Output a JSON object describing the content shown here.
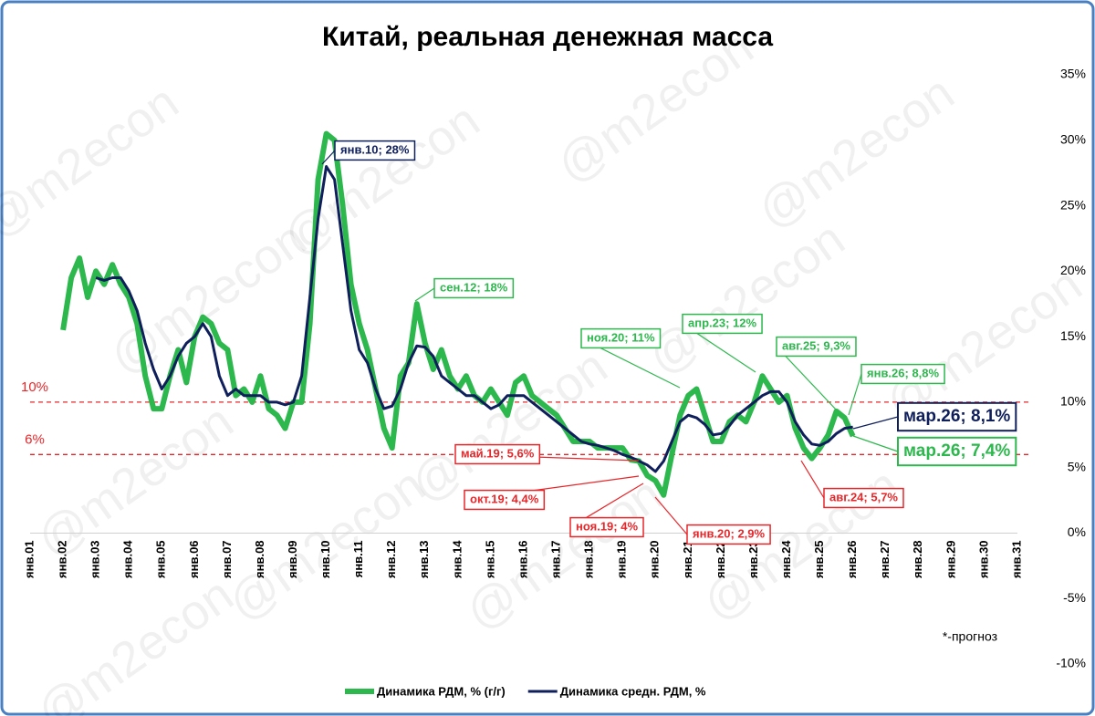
{
  "chart_data": {
    "type": "line",
    "title": "Китай, реальная денежная масса",
    "watermark": "@m2econ",
    "note": "*-прогноз",
    "categories": [
      "янв.01",
      null,
      null,
      null,
      "янв.02",
      null,
      null,
      null,
      "янв.03",
      null,
      null,
      null,
      "янв.04",
      null,
      null,
      null,
      "янв.05",
      null,
      null,
      null,
      "янв.06",
      null,
      null,
      null,
      "янв.07",
      null,
      null,
      null,
      "янв.08",
      null,
      null,
      null,
      "янв.09",
      null,
      null,
      null,
      "янв.10",
      null,
      null,
      null,
      "янв.11",
      null,
      null,
      null,
      "янв.12",
      null,
      null,
      null,
      "янв.13",
      null,
      null,
      null,
      "янв.14",
      null,
      null,
      null,
      "янв.15",
      null,
      null,
      null,
      "янв.16",
      null,
      null,
      null,
      "янв.17",
      null,
      null,
      null,
      "янв.18",
      null,
      null,
      null,
      "янв.19",
      null,
      null,
      null,
      "янв.20",
      null,
      null,
      null,
      "янв.21",
      null,
      null,
      null,
      "янв.22",
      null,
      null,
      null,
      "янв.23",
      null,
      null,
      null,
      "янв.24",
      null,
      null,
      null,
      "янв.25",
      null,
      null,
      null,
      "янв.26",
      null,
      null,
      null,
      "янв.27",
      null,
      null,
      null,
      "янв.28",
      null,
      null,
      null,
      "янв.29",
      null,
      null,
      null,
      "янв.30",
      null,
      null,
      null,
      "янв.31"
    ],
    "series": [
      {
        "name": "Динамика РДМ, % (г/г)",
        "color": "#2db84d",
        "width": 6,
        "values": [
          null,
          null,
          null,
          null,
          15.5,
          19.5,
          21,
          18,
          20,
          19,
          20.5,
          19,
          18,
          16,
          12,
          9.5,
          9.5,
          12,
          14,
          11.5,
          15,
          16.5,
          16,
          14.5,
          14,
          10.5,
          11,
          10,
          12,
          9.5,
          9,
          8,
          10,
          10,
          16,
          27,
          30.5,
          30,
          25,
          19,
          16,
          14,
          11,
          8,
          6.5,
          12,
          13,
          17.5,
          14.5,
          12.5,
          14,
          12,
          11,
          12,
          10.5,
          10,
          11,
          10,
          9,
          11.5,
          12,
          10.5,
          10,
          9.5,
          9,
          8,
          7,
          7,
          7,
          6.5,
          6.5,
          6.5,
          6.5,
          5.6,
          5.5,
          4.4,
          4,
          2.9,
          6,
          9,
          10.5,
          11,
          9,
          7,
          7,
          8.5,
          9,
          8.5,
          10,
          12,
          11,
          10,
          10.5,
          8,
          6.5,
          5.7,
          6.5,
          7.5,
          9.3,
          8.8,
          7.4,
          null,
          null,
          null,
          null,
          null,
          null,
          null,
          null,
          null,
          null,
          null,
          null,
          null,
          null,
          null,
          null,
          null,
          null,
          null,
          null
        ]
      },
      {
        "name": "Динамика средн. РДМ, %",
        "color": "#0f1f5c",
        "width": 3,
        "values": [
          null,
          null,
          null,
          null,
          null,
          null,
          null,
          null,
          19.5,
          19.3,
          19.5,
          19.5,
          18.5,
          17,
          14.5,
          12.5,
          11,
          12,
          13.5,
          14.5,
          15,
          16,
          15,
          12,
          10.5,
          11,
          10.5,
          10.5,
          10.5,
          10,
          10,
          9.8,
          10,
          12,
          18,
          24,
          28,
          27,
          22,
          17,
          14,
          13,
          11,
          9.5,
          9.7,
          11,
          13,
          14.3,
          14.2,
          13.5,
          12,
          11.5,
          11,
          10.5,
          10.5,
          10,
          9.5,
          9.8,
          10.5,
          10.5,
          10.5,
          10,
          9.5,
          9,
          8.5,
          8,
          7.5,
          7,
          6.8,
          6.7,
          6.5,
          6.3,
          6,
          5.8,
          5.5,
          5.2,
          4.7,
          5.5,
          7,
          8.5,
          9,
          8.8,
          8.3,
          7.5,
          7.6,
          8.2,
          9,
          9.5,
          10,
          10.5,
          10.8,
          10.8,
          10,
          8.5,
          7.5,
          6.8,
          6.7,
          7,
          7.6,
          8,
          8.1,
          null,
          null,
          null,
          null,
          null,
          null,
          null,
          null,
          null,
          null,
          null,
          null,
          null,
          null,
          null,
          null,
          null,
          null,
          null,
          null
        ]
      }
    ],
    "ylim": [
      -10,
      35
    ],
    "yticks": [
      {
        "value": -10,
        "label": "-10%"
      },
      {
        "value": -5,
        "label": "-5%"
      },
      {
        "value": 0,
        "label": "0%"
      },
      {
        "value": 5,
        "label": "5%"
      },
      {
        "value": 10,
        "label": "10%"
      },
      {
        "value": 15,
        "label": "15%"
      },
      {
        "value": 20,
        "label": "20%"
      },
      {
        "value": 25,
        "label": "25%"
      },
      {
        "value": 30,
        "label": "30%"
      },
      {
        "value": 35,
        "label": "35%"
      }
    ],
    "grid": false,
    "reference_lines": [
      {
        "value": 10,
        "label": "10%",
        "color": "#e8262a"
      },
      {
        "value": 6,
        "label": "6%",
        "color": "#e8262a"
      }
    ],
    "annotations": [
      {
        "text": "янв.10; 28%",
        "color": "#0f1f5c"
      },
      {
        "text": "сен.12; 18%",
        "color": "#2db84d"
      },
      {
        "text": "ноя.20; 11%",
        "color": "#2db84d"
      },
      {
        "text": "апр.23; 12%",
        "color": "#2db84d"
      },
      {
        "text": "авг.25; 9,3%",
        "color": "#2db84d"
      },
      {
        "text": "янв.26; 8,8%",
        "color": "#2db84d"
      },
      {
        "text": "мар.26; 8,1%",
        "color": "#0f1f5c"
      },
      {
        "text": "мар.26; 7,4%",
        "color": "#2db84d"
      },
      {
        "text": "май.19; 5,6%",
        "color": "#e8262a"
      },
      {
        "text": "окт.19; 4,4%",
        "color": "#e8262a"
      },
      {
        "text": "ноя.19; 4%",
        "color": "#e8262a"
      },
      {
        "text": "янв.20; 2,9%",
        "color": "#e8262a"
      },
      {
        "text": "авг.24; 5,7%",
        "color": "#e8262a"
      }
    ]
  }
}
